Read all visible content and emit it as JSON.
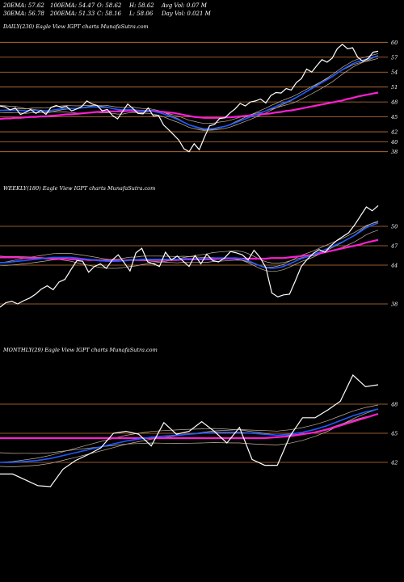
{
  "header": {
    "row1": [
      "20EMA: 57.62",
      "100EMA: 54.47",
      "O: 58.62",
      "H: 58.62",
      "Avg Vol: 0.07 M"
    ],
    "row2": [
      "30EMA: 56.78",
      "200EMA: 51.33",
      "C: 58.16",
      "L: 58.06",
      "Day Vol: 0.021 M"
    ]
  },
  "colors": {
    "background": "#000000",
    "price": "#ffffff",
    "ema_fast": "#1e5bff",
    "ema_slow": "#ff1ed2",
    "ema_thin": "#c8b4a0",
    "hline": "#c8783c"
  },
  "chart_data": [
    {
      "type": "line",
      "title": "DAILY(230) Eagle   View  IGPT charts MunafaSutra.com",
      "y_ticks": [
        "60",
        "57",
        "54",
        "51",
        "48",
        "45",
        "42",
        "40",
        "38"
      ],
      "close": [
        47.2,
        47.0,
        46.4,
        46.8,
        45.5,
        45.9,
        46.5,
        45.7,
        46.3,
        45.5,
        46.9,
        47.3,
        46.9,
        47.1,
        46.2,
        46.6,
        47.1,
        48.2,
        47.6,
        47.3,
        46.2,
        46.5,
        45.3,
        44.6,
        46.1,
        47.6,
        46.7,
        45.7,
        45.6,
        46.8,
        45.2,
        45.3,
        43.4,
        42.4,
        41.4,
        40.3,
        38.6,
        38.0,
        39.6,
        38.4,
        40.9,
        43.2,
        43.5,
        44.7,
        44.8,
        45.8,
        46.6,
        47.7,
        47.2,
        48.0,
        48.2,
        48.6,
        47.8,
        49.3,
        49.9,
        49.8,
        50.7,
        50.4,
        51.9,
        52.7,
        54.6,
        54.0,
        55.3,
        56.5,
        56.0,
        56.8,
        58.7,
        59.6,
        58.7,
        58.9,
        57.0,
        56.2,
        56.7,
        58.0,
        58.2
      ],
      "ema_blue": [
        46.3,
        46.3,
        46.3,
        46.4,
        46.3,
        46.2,
        46.3,
        46.3,
        46.3,
        46.2,
        46.3,
        46.5,
        46.6,
        46.7,
        46.7,
        46.7,
        46.8,
        46.9,
        47.0,
        47.0,
        46.9,
        46.9,
        46.7,
        46.5,
        46.4,
        46.5,
        46.5,
        46.3,
        46.2,
        46.2,
        46.1,
        45.9,
        45.6,
        45.2,
        44.8,
        44.4,
        43.9,
        43.4,
        43.1,
        42.8,
        42.6,
        42.6,
        42.7,
        42.9,
        43.1,
        43.4,
        43.8,
        44.2,
        44.6,
        45.0,
        45.4,
        45.8,
        46.2,
        46.7,
        47.1,
        47.6,
        48.0,
        48.4,
        48.9,
        49.5,
        50.1,
        50.7,
        51.3,
        51.9,
        52.5,
        53.1,
        53.8,
        54.5,
        55.1,
        55.7,
        56.1,
        56.4,
        56.7,
        57.0,
        57.3
      ],
      "ema_magenta": [
        44.6,
        44.7,
        44.7,
        44.8,
        44.8,
        44.9,
        45.0,
        45.0,
        45.1,
        45.1,
        45.2,
        45.3,
        45.4,
        45.5,
        45.5,
        45.6,
        45.7,
        45.8,
        45.9,
        46.0,
        46.0,
        46.1,
        46.1,
        46.1,
        46.1,
        46.2,
        46.2,
        46.2,
        46.2,
        46.2,
        46.2,
        46.1,
        46.0,
        45.9,
        45.8,
        45.6,
        45.4,
        45.2,
        45.0,
        44.9,
        44.8,
        44.8,
        44.8,
        44.8,
        44.9,
        44.9,
        45.0,
        45.1,
        45.2,
        45.3,
        45.4,
        45.5,
        45.6,
        45.7,
        45.9,
        46.0,
        46.2,
        46.3,
        46.5,
        46.7,
        46.9,
        47.1,
        47.3,
        47.5,
        47.7,
        47.9,
        48.1,
        48.3,
        48.6,
        48.8,
        49.1,
        49.3,
        49.5,
        49.7,
        49.9
      ],
      "ylim": [
        36,
        62
      ]
    },
    {
      "type": "line",
      "title": "WEEKLY(180) Eagle   View  IGPT charts MunafaSutra.com",
      "y_ticks": [
        "50",
        "47",
        "44",
        "38"
      ],
      "close": [
        37.5,
        38.2,
        38.4,
        38.0,
        38.5,
        38.9,
        39.5,
        40.3,
        40.8,
        40.2,
        41.4,
        41.8,
        43.3,
        44.7,
        44.6,
        42.9,
        43.8,
        44.2,
        43.5,
        44.8,
        45.6,
        44.4,
        43.1,
        45.9,
        46.6,
        44.5,
        44.2,
        43.8,
        46.0,
        44.8,
        45.4,
        44.6,
        43.8,
        45.5,
        44.2,
        45.7,
        44.7,
        44.5,
        45.1,
        46.1,
        45.9,
        45.6,
        44.8,
        46.3,
        45.2,
        43.6,
        39.7,
        39.1,
        39.4,
        39.5,
        41.6,
        43.8,
        44.9,
        45.8,
        46.4,
        46.0,
        47.0,
        47.8,
        48.4,
        49.0,
        50.2,
        51.6,
        53.0,
        52.4,
        53.2
      ],
      "ema_blue": [
        44.4,
        44.4,
        44.5,
        44.6,
        44.7,
        44.8,
        44.9,
        45.0,
        45.1,
        45.2,
        45.2,
        45.2,
        45.2,
        45.1,
        45.0,
        44.9,
        44.8,
        44.7,
        44.6,
        44.6,
        44.6,
        44.7,
        44.8,
        44.8,
        44.9,
        44.9,
        44.9,
        44.9,
        44.9,
        44.9,
        44.9,
        45.0,
        45.0,
        45.0,
        45.0,
        45.0,
        45.1,
        45.1,
        45.1,
        45.1,
        45.1,
        45.0,
        44.7,
        44.3,
        43.9,
        43.6,
        43.5,
        43.6,
        43.8,
        44.2,
        44.6,
        45.0,
        45.3,
        45.6,
        46.0,
        46.4,
        46.8,
        47.2,
        47.6,
        48.1,
        48.6,
        49.2,
        49.8,
        50.2,
        50.5
      ],
      "ema_magenta": [
        45.2,
        45.2,
        45.2,
        45.2,
        45.1,
        45.1,
        45.1,
        45.1,
        45.0,
        45.0,
        45.0,
        45.0,
        44.9,
        44.9,
        44.9,
        44.8,
        44.8,
        44.7,
        44.7,
        44.7,
        44.7,
        44.7,
        44.8,
        44.8,
        44.8,
        44.8,
        44.8,
        44.8,
        44.8,
        44.8,
        44.8,
        44.9,
        44.9,
        44.9,
        44.9,
        44.9,
        44.9,
        45.0,
        45.0,
        45.0,
        45.0,
        45.0,
        45.0,
        45.0,
        45.0,
        45.0,
        45.1,
        45.1,
        45.1,
        45.2,
        45.3,
        45.4,
        45.5,
        45.6,
        45.8,
        46.0,
        46.2,
        46.4,
        46.6,
        46.8,
        47.0,
        47.2,
        47.5,
        47.7,
        47.9
      ],
      "ylim": [
        35,
        55
      ]
    },
    {
      "type": "line",
      "title": "MONTHLY(29) Eagle   View  IGPT charts MunafaSutra.com",
      "y_ticks": [
        "48",
        "45",
        "42"
      ],
      "close": [
        40.8,
        40.8,
        40.2,
        39.6,
        39.5,
        41.3,
        42.2,
        42.8,
        43.5,
        45.0,
        45.2,
        44.9,
        43.7,
        46.1,
        44.9,
        45.2,
        46.2,
        45.2,
        44.0,
        45.6,
        42.3,
        41.7,
        41.7,
        44.7,
        46.6,
        46.6,
        47.4,
        48.3,
        51.0,
        49.8,
        50.0
      ],
      "ema_blue": [
        42.0,
        42.0,
        42.1,
        42.2,
        42.4,
        42.7,
        43.0,
        43.3,
        43.6,
        43.9,
        44.2,
        44.4,
        44.6,
        44.7,
        44.8,
        44.9,
        45.0,
        45.1,
        45.1,
        45.1,
        45.0,
        44.9,
        44.8,
        44.9,
        45.1,
        45.4,
        45.8,
        46.3,
        46.8,
        47.2,
        47.5
      ],
      "ema_magenta": [
        44.5,
        44.5,
        44.5,
        44.5,
        44.5,
        44.5,
        44.5,
        44.5,
        44.5,
        44.5,
        44.5,
        44.5,
        44.5,
        44.5,
        44.5,
        44.5,
        44.5,
        44.5,
        44.5,
        44.5,
        44.5,
        44.5,
        44.6,
        44.7,
        44.9,
        45.1,
        45.4,
        45.8,
        46.2,
        46.6,
        47.0
      ],
      "ylim": [
        38,
        53
      ]
    }
  ]
}
